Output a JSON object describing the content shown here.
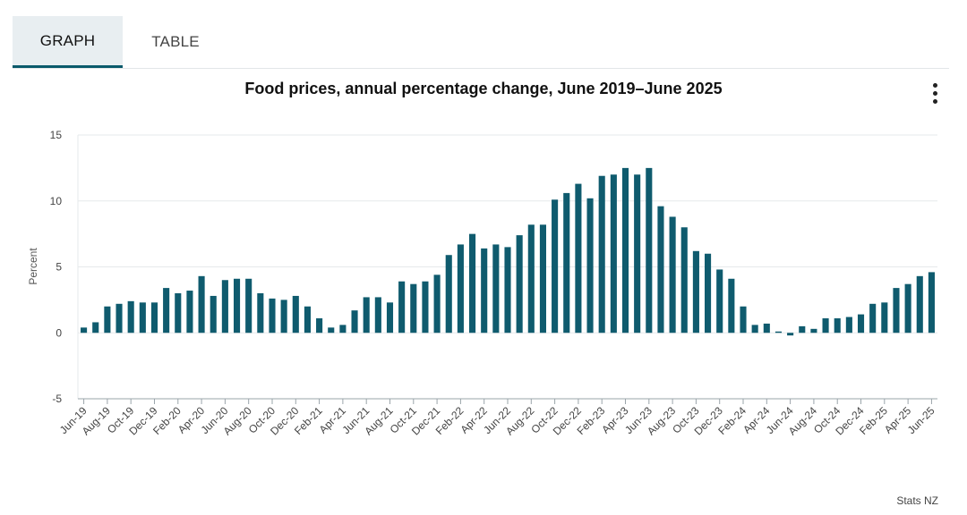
{
  "tabs": [
    {
      "label": "GRAPH",
      "active": true
    },
    {
      "label": "TABLE",
      "active": false
    }
  ],
  "menu_icon": "vertical-ellipsis-icon",
  "source": "Stats NZ",
  "colors": {
    "bar": "#0f5b6e",
    "grid": "#e6e9eb",
    "accent": "#0a5a6b"
  },
  "chart_data": {
    "type": "bar",
    "title": "Food prices, annual percentage change, June 2019–June 2025",
    "ylabel": "Percent",
    "xlabel": "",
    "ylim": [
      -5,
      15
    ],
    "yticks": [
      -5,
      0,
      5,
      10,
      15
    ],
    "grid": true,
    "categories": [
      "Jun-19",
      "Jul-19",
      "Aug-19",
      "Sep-19",
      "Oct-19",
      "Nov-19",
      "Dec-19",
      "Jan-20",
      "Feb-20",
      "Mar-20",
      "Apr-20",
      "May-20",
      "Jun-20",
      "Jul-20",
      "Aug-20",
      "Sep-20",
      "Oct-20",
      "Nov-20",
      "Dec-20",
      "Jan-21",
      "Feb-21",
      "Mar-21",
      "Apr-21",
      "May-21",
      "Jun-21",
      "Jul-21",
      "Aug-21",
      "Sep-21",
      "Oct-21",
      "Nov-21",
      "Dec-21",
      "Jan-22",
      "Feb-22",
      "Mar-22",
      "Apr-22",
      "May-22",
      "Jun-22",
      "Jul-22",
      "Aug-22",
      "Sep-22",
      "Oct-22",
      "Nov-22",
      "Dec-22",
      "Jan-23",
      "Feb-23",
      "Mar-23",
      "Apr-23",
      "May-23",
      "Jun-23",
      "Jul-23",
      "Aug-23",
      "Sep-23",
      "Oct-23",
      "Nov-23",
      "Dec-23",
      "Jan-24",
      "Feb-24",
      "Mar-24",
      "Apr-24",
      "May-24",
      "Jun-24",
      "Jul-24",
      "Aug-24",
      "Sep-24",
      "Oct-24",
      "Nov-24",
      "Dec-24",
      "Jan-25",
      "Feb-25",
      "Mar-25",
      "Apr-25",
      "May-25",
      "Jun-25"
    ],
    "xtick_labels": [
      "Jun-19",
      "Aug-19",
      "Oct-19",
      "Dec-19",
      "Feb-20",
      "Apr-20",
      "Jun-20",
      "Aug-20",
      "Oct-20",
      "Dec-20",
      "Feb-21",
      "Apr-21",
      "Jun-21",
      "Aug-21",
      "Oct-21",
      "Dec-21",
      "Feb-22",
      "Apr-22",
      "Jun-22",
      "Aug-22",
      "Oct-22",
      "Dec-22",
      "Feb-23",
      "Apr-23",
      "Jun-23",
      "Aug-23",
      "Oct-23",
      "Dec-23",
      "Feb-24",
      "Apr-24",
      "Jun-24",
      "Aug-24",
      "Oct-24",
      "Dec-24",
      "Feb-25",
      "Apr-25",
      "Jun-25"
    ],
    "series": [
      {
        "values": [
          0.4,
          0.8,
          2.0,
          2.2,
          2.4,
          2.3,
          2.3,
          3.4,
          3.0,
          3.2,
          4.3,
          2.8,
          4.0,
          4.1,
          4.1,
          3.0,
          2.6,
          2.5,
          2.8,
          2.0,
          1.1,
          0.4,
          0.6,
          1.7,
          2.7,
          2.7,
          2.3,
          3.9,
          3.7,
          3.9,
          4.4,
          5.9,
          6.7,
          7.5,
          6.4,
          6.7,
          6.5,
          7.4,
          8.2,
          8.2,
          10.1,
          10.6,
          11.3,
          10.2,
          11.9,
          12.0,
          12.5,
          12.0,
          12.5,
          9.6,
          8.8,
          8.0,
          6.2,
          6.0,
          4.8,
          4.1,
          2.0,
          0.6,
          0.7,
          0.1,
          -0.2,
          0.5,
          0.3,
          1.1,
          1.1,
          1.2,
          1.4,
          2.2,
          2.3,
          3.4,
          3.7,
          4.3,
          4.6
        ]
      }
    ]
  }
}
